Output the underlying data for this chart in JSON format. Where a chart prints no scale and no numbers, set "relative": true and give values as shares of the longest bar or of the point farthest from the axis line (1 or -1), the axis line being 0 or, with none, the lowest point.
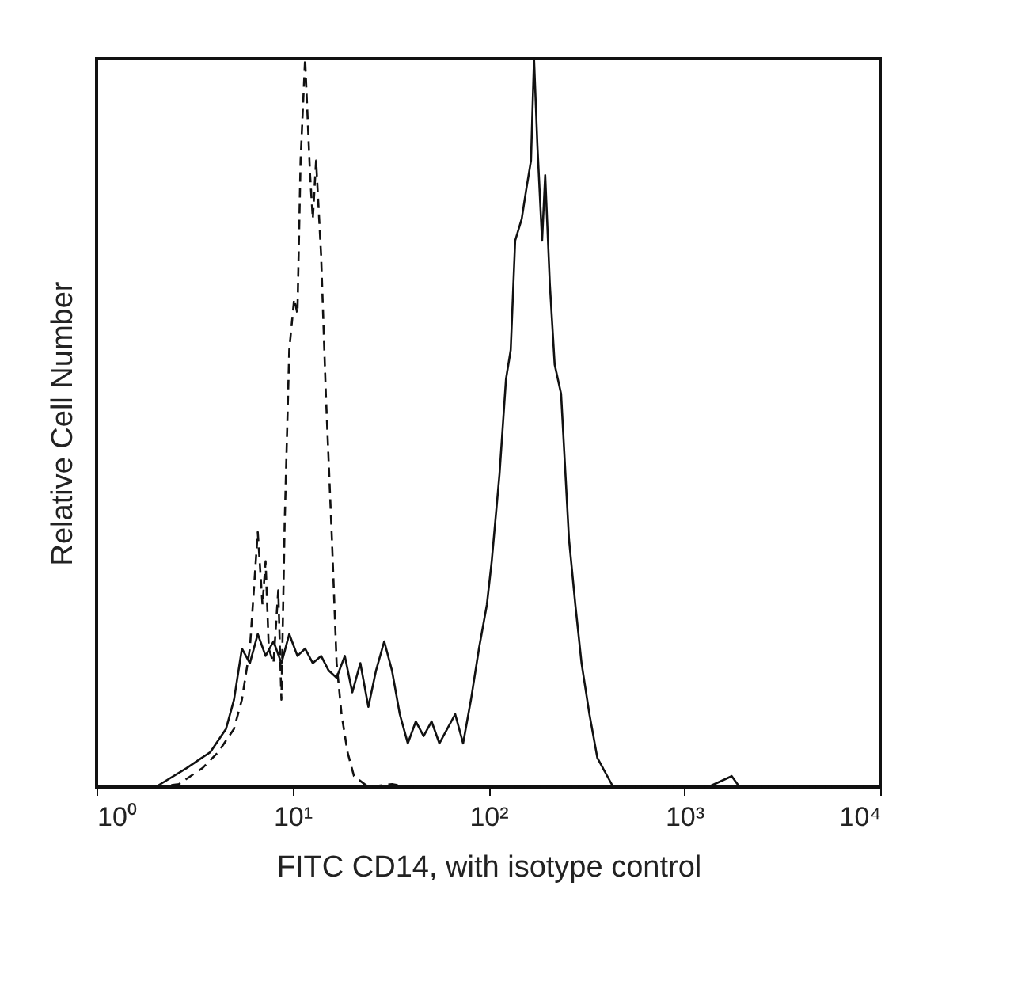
{
  "chart_data": {
    "type": "line",
    "xlabel": "FITC CD14, with isotype control",
    "ylabel": "Relative Cell Number",
    "relative": true,
    "log": "x",
    "grid": false,
    "legend": false,
    "marker": "none",
    "xlim": [
      1,
      10000
    ],
    "xticks": [
      {
        "value": 1,
        "label": "10⁰"
      },
      {
        "value": 10,
        "label": "10¹"
      },
      {
        "value": 100,
        "label": "10²"
      },
      {
        "value": 1000,
        "label": "10³"
      },
      {
        "value": 10000,
        "label": "10⁴"
      }
    ],
    "series": [
      {
        "color": "#111111",
        "line_style": "solid",
        "x": [
          2.0,
          2.88,
          3.81,
          4.58,
          5.03,
          5.52,
          6.06,
          6.65,
          7.29,
          8.0,
          8.78,
          9.63,
          10.6,
          11.6,
          12.7,
          14.0,
          15.3,
          16.8,
          18.5,
          20.2,
          22.2,
          24.4,
          26.7,
          29.4,
          32.2,
          35.3,
          38.8,
          42.6,
          46.7,
          51.3,
          56.2,
          61.7,
          67.7,
          74.3,
          81.5,
          89.5,
          98.2,
          104,
          114,
          123,
          130,
          137,
          148,
          156,
          165,
          171,
          178,
          188,
          195,
          206,
          218,
          235,
          258,
          278,
          299,
          328,
          360,
          434,
          1321,
          1746,
          1915,
          10000
        ],
        "values": [
          0,
          0.026,
          0.048,
          0.08,
          0.12,
          0.19,
          0.17,
          0.21,
          0.18,
          0.2,
          0.17,
          0.21,
          0.18,
          0.19,
          0.17,
          0.18,
          0.16,
          0.15,
          0.18,
          0.13,
          0.17,
          0.11,
          0.16,
          0.2,
          0.16,
          0.1,
          0.06,
          0.09,
          0.07,
          0.09,
          0.06,
          0.08,
          0.1,
          0.06,
          0.12,
          0.19,
          0.25,
          0.31,
          0.43,
          0.56,
          0.6,
          0.75,
          0.78,
          0.82,
          0.86,
          1,
          0.88,
          0.75,
          0.84,
          0.69,
          0.58,
          0.54,
          0.34,
          0.25,
          0.17,
          0.1,
          0.04,
          0,
          0,
          0.015,
          0,
          0
        ]
      },
      {
        "color": "#111111",
        "line_style": "dashed",
        "x": [
          2.0,
          2.63,
          3.47,
          4.18,
          5.03,
          5.52,
          6.06,
          6.65,
          7.03,
          7.29,
          7.57,
          8.0,
          8.46,
          8.78,
          9.12,
          9.63,
          10.2,
          10.6,
          11.0,
          11.6,
          12.3,
          12.7,
          13.2,
          14.0,
          14.8,
          15.9,
          16.8,
          17.8,
          19.1,
          20.6,
          24.4,
          32.2,
          38.8,
          10000
        ],
        "values": [
          0,
          0.004,
          0.026,
          0.048,
          0.08,
          0.12,
          0.19,
          0.35,
          0.25,
          0.31,
          0.19,
          0.17,
          0.27,
          0.12,
          0.36,
          0.6,
          0.67,
          0.65,
          0.86,
          1,
          0.84,
          0.78,
          0.86,
          0.73,
          0.54,
          0.34,
          0.17,
          0.1,
          0.048,
          0.015,
          0,
          0.004,
          0,
          0
        ]
      }
    ]
  }
}
